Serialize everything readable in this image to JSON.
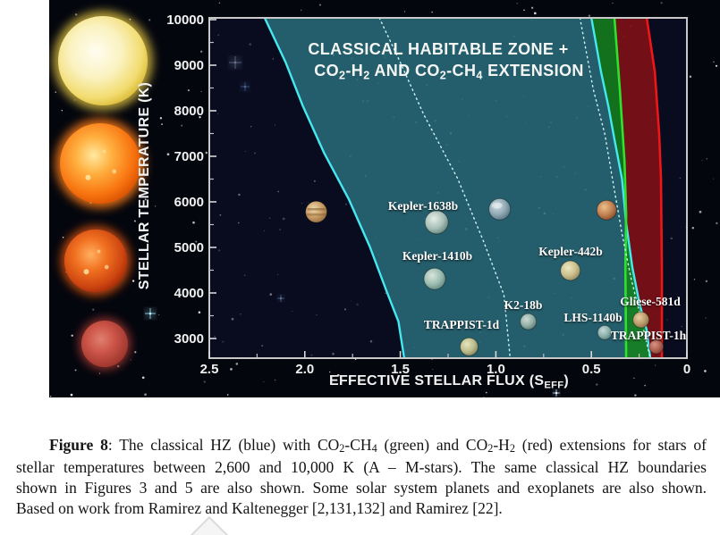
{
  "figure": {
    "title_line1": "CLASSICAL HABITABLE ZONE +",
    "title_line2_runs": [
      {
        "t": "CO"
      },
      {
        "s": "2"
      },
      {
        "t": "-H"
      },
      {
        "s": "2"
      },
      {
        "t": " AND CO"
      },
      {
        "s": "2"
      },
      {
        "t": "-CH"
      },
      {
        "s": "4"
      },
      {
        "t": " EXTENSION"
      }
    ],
    "y_axis": {
      "label": "STELLAR TEMPERATURE (K)",
      "ticks": [
        "10000",
        "9000",
        "8000",
        "7000",
        "6000",
        "5000",
        "4000",
        "3000"
      ]
    },
    "x_axis": {
      "label_runs": [
        {
          "t": "EFFECTIVE STELLAR FLUX (S"
        },
        {
          "s": "EFF"
        },
        {
          "t": ")"
        }
      ],
      "ticks": [
        "2.5",
        "2.0",
        "1.5",
        "1.0",
        "0.5",
        "0"
      ]
    },
    "star_column_icons": [
      "a-type-star-icon",
      "g-type-star-icon",
      "k-type-star-icon",
      "m-type-star-icon"
    ],
    "colors": {
      "hz_fill": "#2f7d89",
      "hz_line": "#45e8f0",
      "ch4_fill": "#15821c",
      "ch4_line": "#2de22d",
      "h2_fill": "#7e1016",
      "h2_line": "#ee1616",
      "frame": "#c8c8c8",
      "figure_bg": "#04060e",
      "plot_bg": "#0a1028",
      "dash": "#d2f5fa"
    }
  },
  "chart_data": {
    "type": "scatter",
    "title": "CLASSICAL HABITABLE ZONE + CO2-H2 AND CO2-CH4 EXTENSION",
    "xlabel": "EFFECTIVE STELLAR FLUX (SEFF)",
    "ylabel": "STELLAR TEMPERATURE (K)",
    "xlim": [
      2.5,
      0
    ],
    "ylim": [
      2600,
      10000
    ],
    "legend": "none",
    "grid": false,
    "planets": [
      {
        "name": "Venus-like solar system planet",
        "label": "",
        "flux": 1.94,
        "temp": 5780
      },
      {
        "name": "Kepler-1638b",
        "label": "Kepler-1638b",
        "flux": 1.31,
        "temp": 5550
      },
      {
        "name": "Earth",
        "label": "",
        "flux": 0.98,
        "temp": 5840
      },
      {
        "name": "Mars",
        "label": "",
        "flux": 0.42,
        "temp": 5820
      },
      {
        "name": "Kepler-1410b",
        "label": "Kepler-1410b",
        "flux": 1.32,
        "temp": 4310
      },
      {
        "name": "Kepler-442b",
        "label": "Kepler-442b",
        "flux": 0.61,
        "temp": 4490
      },
      {
        "name": "K2-18b",
        "label": "K2-18b",
        "flux": 0.83,
        "temp": 3370
      },
      {
        "name": "TRAPPIST-1d",
        "label": "TRAPPIST-1d",
        "flux": 1.14,
        "temp": 2820
      },
      {
        "name": "LHS-1140b",
        "label": "LHS-1140b",
        "flux": 0.43,
        "temp": 3130
      },
      {
        "name": "Gliese-581d",
        "label": "Gliese-581d",
        "flux": 0.24,
        "temp": 3410
      },
      {
        "name": "TRAPPIST-1h",
        "label": "TRAPPIST-1h",
        "flux": 0.16,
        "temp": 2820
      }
    ],
    "boundaries": {
      "hz_inner": [
        [
          2.21,
          10040
        ],
        [
          2.1,
          9060
        ],
        [
          2.01,
          8100
        ],
        [
          1.9,
          7080
        ],
        [
          1.77,
          6060
        ],
        [
          1.66,
          5020
        ],
        [
          1.57,
          4020
        ],
        [
          1.51,
          3370
        ],
        [
          1.48,
          2570
        ]
      ],
      "hz_outer": [
        [
          0.5,
          10040
        ],
        [
          0.45,
          8860
        ],
        [
          0.41,
          8080
        ],
        [
          0.38,
          7390
        ],
        [
          0.34,
          6510
        ],
        [
          0.318,
          5530
        ],
        [
          0.285,
          4550
        ],
        [
          0.248,
          3765
        ],
        [
          0.21,
          3180
        ],
        [
          0.192,
          2570
        ]
      ],
      "ch4_outer": [
        [
          0.379,
          10040
        ],
        [
          0.351,
          8470
        ],
        [
          0.327,
          6900
        ],
        [
          0.318,
          5720
        ],
        [
          0.322,
          4550
        ],
        [
          0.318,
          2570
        ]
      ],
      "h2_outer": [
        [
          0.21,
          10040
        ],
        [
          0.168,
          8860
        ],
        [
          0.145,
          7490
        ],
        [
          0.136,
          6510
        ],
        [
          0.131,
          4550
        ],
        [
          0.131,
          2570
        ]
      ],
      "dashed_inner": [
        [
          1.61,
          10040
        ],
        [
          1.5,
          9060
        ],
        [
          1.38,
          7940
        ],
        [
          1.2,
          6510
        ],
        [
          1.065,
          5140
        ],
        [
          0.958,
          3960
        ],
        [
          0.925,
          2570
        ]
      ],
      "dashed_outer": [
        [
          0.56,
          10040
        ],
        [
          0.49,
          8470
        ],
        [
          0.43,
          7490
        ],
        [
          0.39,
          6510
        ],
        [
          0.341,
          5330
        ],
        [
          0.294,
          4350
        ],
        [
          0.248,
          3570
        ],
        [
          0.192,
          2570
        ]
      ]
    }
  },
  "caption": {
    "line1_runs": [
      {
        "t": "Figure 8",
        "b": 1
      },
      {
        "t": ": The classical HZ (blue) with CO"
      },
      {
        "s": "2"
      },
      {
        "t": "-CH"
      },
      {
        "s": "4"
      },
      {
        "t": " (green) and CO"
      },
      {
        "s": "2"
      },
      {
        "t": "-H"
      },
      {
        "s": "2"
      },
      {
        "t": " (red) extensions for stars of"
      }
    ],
    "line2": "stellar temperatures between 2,600 and 10,000 K (A – M-stars). The same classical HZ boundaries",
    "line3": "shown in Figures 3 and 5 are also shown. Some solar system planets and exoplanets are also shown.",
    "line4": "Based on work from Ramirez and Kaltenegger [2,131,132] and Ramirez [22]."
  }
}
